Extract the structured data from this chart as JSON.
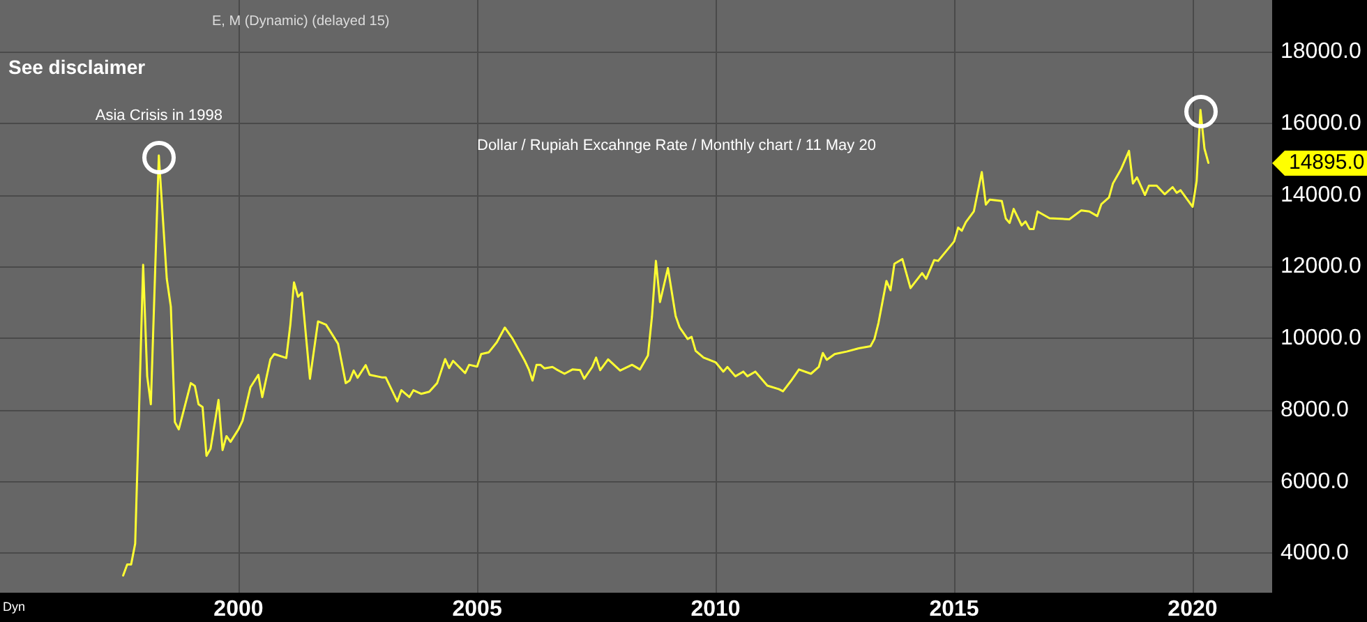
{
  "chart_data": {
    "type": "line",
    "title": "Dollar / Rupiah Excahnge Rate / Monthly chart / 11 May 20",
    "annotations": [
      "E, M (Dynamic) (delayed 15)",
      "See disclaimer",
      {
        "text": "Asia Crisis in 1998",
        "x": "1998-05",
        "y": 15100
      },
      "14895.0",
      "Dyn"
    ],
    "x": [
      "1997-08",
      "1997-09",
      "1997-10",
      "1997-11",
      "1997-12",
      "1998-01",
      "1998-02",
      "1998-03",
      "1998-04",
      "1998-05",
      "1998-07",
      "1998-08",
      "1998-09",
      "1998-10",
      "1999-01",
      "1999-02",
      "1999-03",
      "1999-04",
      "1999-05",
      "1999-06",
      "1999-08",
      "1999-09",
      "1999-10",
      "1999-11",
      "2000-01",
      "2000-02",
      "2000-04",
      "2000-06",
      "2000-07",
      "2000-09",
      "2000-10",
      "2001-01",
      "2001-02",
      "2001-03",
      "2001-04",
      "2001-05",
      "2001-07",
      "2001-09",
      "2001-11",
      "2002-02",
      "2002-04",
      "2002-05",
      "2002-06",
      "2002-07",
      "2002-09",
      "2002-10",
      "2003-01",
      "2003-02",
      "2003-05",
      "2003-06",
      "2003-08",
      "2003-09",
      "2003-11",
      "2004-01",
      "2004-03",
      "2004-05",
      "2004-06",
      "2004-07",
      "2004-10",
      "2004-11",
      "2005-01",
      "2005-02",
      "2005-04",
      "2005-06",
      "2005-08",
      "2005-10",
      "2006-01",
      "2006-02",
      "2006-03",
      "2006-04",
      "2006-05",
      "2006-06",
      "2006-08",
      "2006-09",
      "2006-11",
      "2007-01",
      "2007-03",
      "2007-04",
      "2007-06",
      "2007-07",
      "2007-08",
      "2007-10",
      "2008-01",
      "2008-04",
      "2008-06",
      "2008-08",
      "2008-09",
      "2008-10",
      "2008-11",
      "2009-01",
      "2009-03",
      "2009-04",
      "2009-06",
      "2009-07",
      "2009-08",
      "2009-10",
      "2010-01",
      "2010-03",
      "2010-04",
      "2010-06",
      "2010-08",
      "2010-09",
      "2010-11",
      "2011-02",
      "2011-05",
      "2011-06",
      "2011-08",
      "2011-10",
      "2012-01",
      "2012-03",
      "2012-04",
      "2012-05",
      "2012-07",
      "2012-10",
      "2013-01",
      "2013-04",
      "2013-05",
      "2013-06",
      "2013-08",
      "2013-09",
      "2013-10",
      "2013-12",
      "2014-02",
      "2014-05",
      "2014-06",
      "2014-08",
      "2014-09",
      "2015-01",
      "2015-02",
      "2015-03",
      "2015-04",
      "2015-06",
      "2015-08",
      "2015-09",
      "2015-10",
      "2016-01",
      "2016-02",
      "2016-03",
      "2016-04",
      "2016-06",
      "2016-07",
      "2016-08",
      "2016-09",
      "2016-10",
      "2017-01",
      "2017-06",
      "2017-09",
      "2017-11",
      "2018-01",
      "2018-02",
      "2018-04",
      "2018-05",
      "2018-07",
      "2018-09",
      "2018-10",
      "2018-11",
      "2019-01",
      "2019-02",
      "2019-04",
      "2019-06",
      "2019-08",
      "2019-09",
      "2019-10",
      "2020-01",
      "2020-02",
      "2020-03",
      "2020-04",
      "2020-05"
    ],
    "series": [
      {
        "color": "#ffff33",
        "values": [
          3380,
          3690,
          3690,
          4270,
          8050,
          12050,
          8940,
          8160,
          11660,
          15100,
          11660,
          10880,
          7660,
          7460,
          8750,
          8670,
          8160,
          8080,
          6720,
          6920,
          8280,
          6880,
          7270,
          7110,
          7460,
          7700,
          8630,
          8980,
          8360,
          9410,
          9560,
          9450,
          10380,
          11560,
          11160,
          11270,
          8870,
          10470,
          10380,
          9850,
          8750,
          8820,
          9100,
          8900,
          9250,
          8980,
          8910,
          8910,
          8240,
          8550,
          8360,
          8550,
          8450,
          8510,
          8750,
          9420,
          9170,
          9370,
          9030,
          9260,
          9210,
          9560,
          9610,
          9890,
          10300,
          9980,
          9370,
          9130,
          8820,
          9260,
          9260,
          9160,
          9200,
          9130,
          9010,
          9130,
          9110,
          8870,
          9200,
          9460,
          9110,
          9410,
          9100,
          9260,
          9130,
          9520,
          10620,
          12160,
          11010,
          11960,
          10620,
          10300,
          9980,
          10040,
          9650,
          9460,
          9330,
          9070,
          9200,
          8940,
          9070,
          8940,
          9070,
          8680,
          8580,
          8520,
          8810,
          9130,
          9010,
          9200,
          9590,
          9400,
          9560,
          9630,
          9720,
          9780,
          9980,
          10430,
          11600,
          11340,
          12080,
          12210,
          11400,
          11820,
          11660,
          12180,
          12160,
          12700,
          13090,
          13000,
          13240,
          13540,
          14640,
          13730,
          13870,
          13830,
          13340,
          13220,
          13610,
          13150,
          13260,
          13050,
          13050,
          13540,
          13350,
          13320,
          13570,
          13540,
          13410,
          13740,
          13930,
          14320,
          14710,
          15230,
          14320,
          14490,
          14000,
          14260,
          14260,
          14020,
          14220,
          14060,
          14130,
          13670,
          14390,
          16370,
          15290,
          14895
        ]
      }
    ],
    "xlim": [
      "1995-01",
      "2021-09"
    ],
    "xticks": [
      "2000",
      "2005",
      "2010",
      "2015",
      "2020"
    ],
    "ylim": [
      2900,
      19440
    ],
    "yticks": [
      {
        "value": 4000,
        "label": "4000.0"
      },
      {
        "value": 6000,
        "label": "6000.0"
      },
      {
        "value": 8000,
        "label": "8000.0"
      },
      {
        "value": 10000,
        "label": "10000.0"
      },
      {
        "value": 12000,
        "label": "12000.0"
      },
      {
        "value": 14000,
        "label": "14000.0"
      },
      {
        "value": 16000,
        "label": "16000.0"
      },
      {
        "value": 18000,
        "label": "18000.0"
      }
    ],
    "grid": true,
    "marker": "none",
    "line_style": "solid"
  }
}
